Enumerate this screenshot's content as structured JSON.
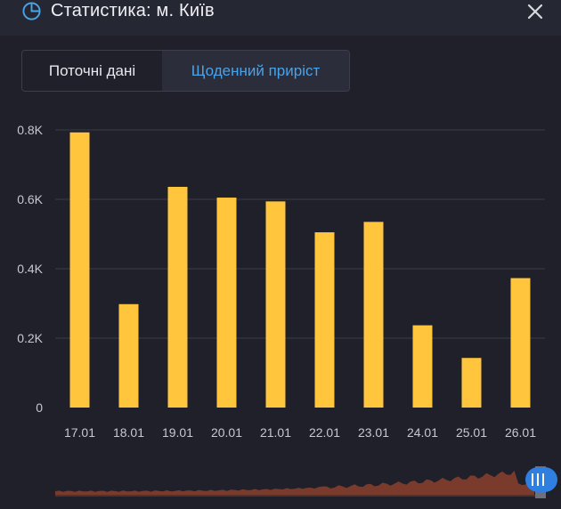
{
  "header": {
    "title": "Статистика: м. Київ",
    "icon": "pie-chart-icon",
    "close_icon": "close-icon"
  },
  "tabs": [
    {
      "label": "Поточні дані",
      "active": false
    },
    {
      "label": "Щоденний приріст",
      "active": true
    }
  ],
  "colors": {
    "bar": "#ffc53d",
    "accent": "#4aa3e8",
    "grid": "#3a3c48",
    "axis_text": "#c8c8d0",
    "overview_fill": "#7a3a2c"
  },
  "chart_data": {
    "type": "bar",
    "categories": [
      "17.01",
      "18.01",
      "19.01",
      "20.01",
      "21.01",
      "22.01",
      "23.01",
      "24.01",
      "25.01",
      "26.01"
    ],
    "values": [
      793,
      298,
      636,
      605,
      594,
      505,
      535,
      237,
      143,
      373
    ],
    "ylim": [
      0,
      800
    ],
    "yticks": [
      0,
      200,
      400,
      600,
      800
    ],
    "ytick_labels": [
      "0",
      "0.2K",
      "0.4K",
      "0.6K",
      "0.8K"
    ],
    "title": "",
    "xlabel": "",
    "ylabel": "",
    "grid": true
  }
}
